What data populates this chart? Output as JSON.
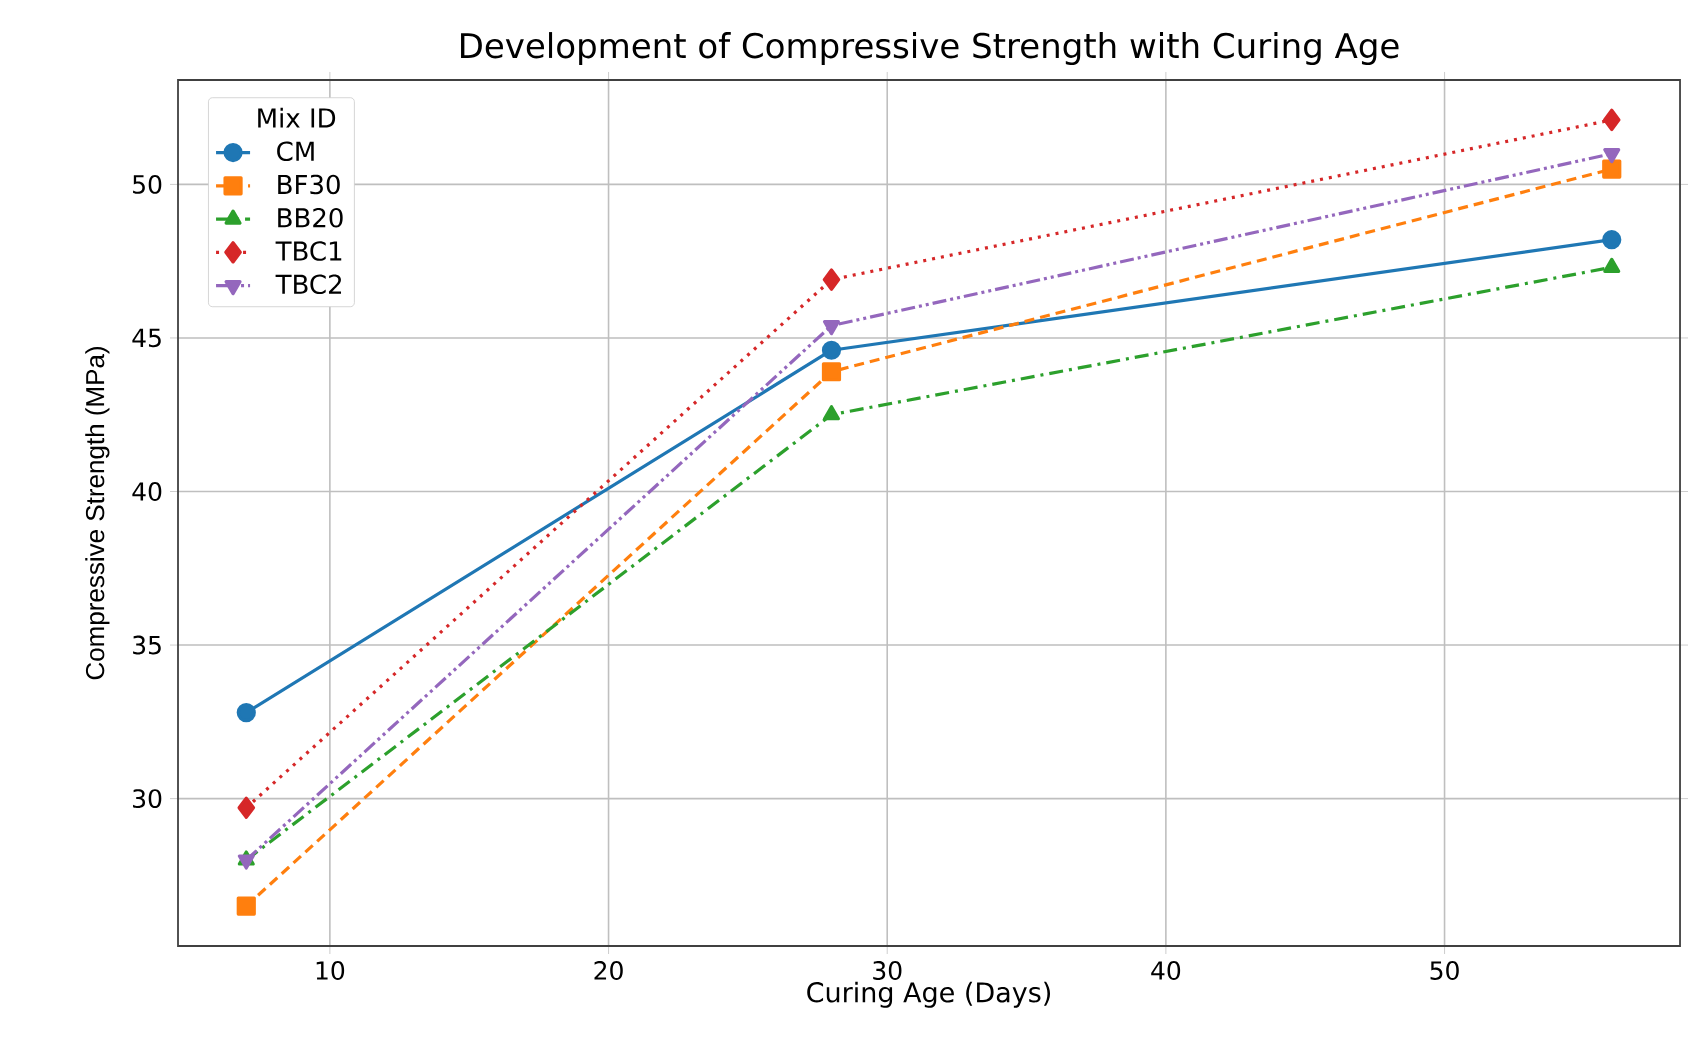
{
  "chart_data": {
    "type": "line",
    "title": "Development of Compressive Strength with Curing Age",
    "xlabel": "Curing Age (Days)",
    "ylabel": "Compressive Strength (MPa)",
    "legend_title": "Mix ID",
    "x": [
      7,
      28,
      56
    ],
    "series": [
      {
        "name": "CM",
        "color": "#1f77b4",
        "values": [
          32.8,
          44.6,
          48.2
        ],
        "marker": "circle",
        "line_style": "solid"
      },
      {
        "name": "BF30",
        "color": "#ff7f0e",
        "values": [
          26.5,
          43.9,
          50.5
        ],
        "marker": "square",
        "line_style": "dashed"
      },
      {
        "name": "BB20",
        "color": "#2ca02c",
        "values": [
          28.0,
          42.5,
          47.3
        ],
        "marker": "triangle",
        "line_style": "dashdot"
      },
      {
        "name": "TBC1",
        "color": "#d62728",
        "values": [
          29.7,
          46.9,
          52.1
        ],
        "marker": "diamond",
        "line_style": "dotted"
      },
      {
        "name": "TBC2",
        "color": "#9467bd",
        "values": [
          28.0,
          45.4,
          51.0
        ],
        "marker": "triangle_down",
        "line_style": "dashdotdot"
      }
    ],
    "xlim": [
      4.55,
      58.45
    ],
    "ylim": [
      25.2,
      53.4
    ],
    "xticks": [
      10,
      20,
      30,
      40,
      50
    ],
    "yticks": [
      30,
      35,
      40,
      45,
      50
    ],
    "grid": true,
    "legend": "top left"
  }
}
